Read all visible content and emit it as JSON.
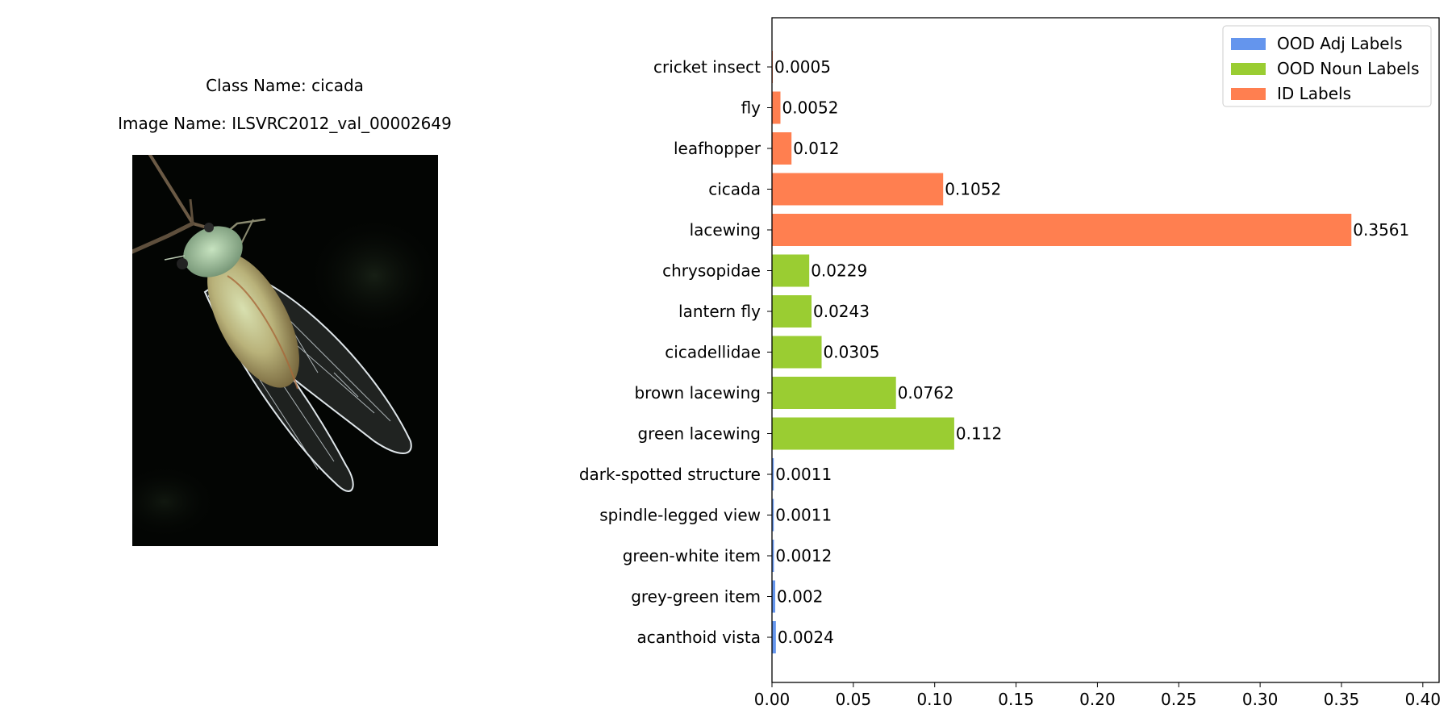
{
  "figure": {
    "class_name_text": "Class Name: cicada",
    "image_name_text": "Image Name: ILSVRC2012_val_00002649",
    "image_subject_icon": "cicada-photo"
  },
  "chart_data": {
    "type": "bar",
    "orientation": "horizontal",
    "title": "",
    "xlabel": "",
    "ylabel": "",
    "xlim": [
      0,
      0.41
    ],
    "xticks": [
      0.0,
      0.05,
      0.1,
      0.15,
      0.2,
      0.25,
      0.3,
      0.35,
      0.4
    ],
    "xtick_labels": [
      "0.00",
      "0.05",
      "0.10",
      "0.15",
      "0.20",
      "0.25",
      "0.30",
      "0.35",
      "0.40"
    ],
    "grid": false,
    "legend_position": "top-right",
    "categories": [
      "acanthoid vista",
      "grey-green item",
      "green-white item",
      "spindle-legged view",
      "dark-spotted structure",
      "green lacewing",
      "brown lacewing",
      "cicadellidae",
      "lantern fly",
      "chrysopidae",
      "lacewing",
      "cicada",
      "leafhopper",
      "fly",
      "cricket insect"
    ],
    "values": [
      0.0024,
      0.002,
      0.0012,
      0.0011,
      0.0011,
      0.112,
      0.0762,
      0.0305,
      0.0243,
      0.0229,
      0.3561,
      0.1052,
      0.012,
      0.0052,
      0.0005
    ],
    "value_labels": [
      "0.0024",
      "0.002",
      "0.0012",
      "0.0011",
      "0.0011",
      "0.112",
      "0.0762",
      "0.0305",
      "0.0243",
      "0.0229",
      "0.3561",
      "0.1052",
      "0.012",
      "0.0052",
      "0.0005"
    ],
    "groups": [
      "adj",
      "adj",
      "adj",
      "adj",
      "adj",
      "noun",
      "noun",
      "noun",
      "noun",
      "noun",
      "id",
      "id",
      "id",
      "id",
      "id"
    ],
    "series": [
      {
        "key": "adj",
        "name": "OOD Adj Labels",
        "color": "#6495ED"
      },
      {
        "key": "noun",
        "name": "OOD Noun Labels",
        "color": "#9ACD32"
      },
      {
        "key": "id",
        "name": "ID Labels",
        "color": "#FF7F50"
      }
    ]
  }
}
